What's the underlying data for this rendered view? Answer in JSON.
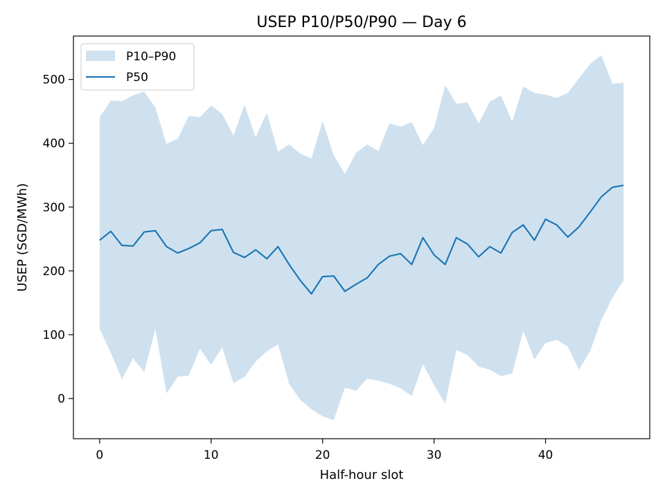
{
  "chart_data": {
    "type": "area",
    "title": "USEP P10/P50/P90 — Day 6",
    "xlabel": "Half-hour slot",
    "ylabel": "USEP (SGD/MWh)",
    "xlim": [
      -2.35,
      49.35
    ],
    "ylim": [
      -63,
      568
    ],
    "xticks": [
      0,
      10,
      20,
      30,
      40
    ],
    "yticks": [
      0,
      100,
      200,
      300,
      400,
      500
    ],
    "grid": false,
    "legend_position": "top-left",
    "x": [
      0,
      1,
      2,
      3,
      4,
      5,
      6,
      7,
      8,
      9,
      10,
      11,
      12,
      13,
      14,
      15,
      16,
      17,
      18,
      19,
      20,
      21,
      22,
      23,
      24,
      25,
      26,
      27,
      28,
      29,
      30,
      31,
      32,
      33,
      34,
      35,
      36,
      37,
      38,
      39,
      40,
      41,
      42,
      43,
      44,
      45,
      46,
      47
    ],
    "band": {
      "name": "P10–P90",
      "color": "#cfe1ef",
      "lower": [
        109,
        72,
        30,
        63,
        41,
        109,
        8,
        34,
        36,
        78,
        53,
        80,
        24,
        34,
        58,
        74,
        85,
        23,
        -2,
        -17,
        -28,
        -34,
        17,
        12,
        31,
        28,
        23,
        16,
        4,
        54,
        21,
        -8,
        76,
        68,
        50,
        45,
        35,
        39,
        106,
        61,
        87,
        92,
        81,
        45,
        74,
        123,
        158,
        185
      ],
      "upper": [
        441,
        467,
        466,
        475,
        481,
        456,
        399,
        407,
        443,
        441,
        459,
        446,
        412,
        460,
        409,
        448,
        387,
        398,
        384,
        376,
        435,
        381,
        352,
        385,
        398,
        388,
        431,
        426,
        433,
        397,
        424,
        491,
        462,
        464,
        431,
        465,
        475,
        434,
        489,
        479,
        476,
        471,
        479,
        502,
        524,
        538,
        493,
        495
      ]
    },
    "series": [
      {
        "name": "P50",
        "color": "#1f77b4",
        "values": [
          248,
          262,
          240,
          239,
          261,
          263,
          238,
          228,
          235,
          244,
          263,
          265,
          229,
          221,
          233,
          219,
          238,
          210,
          185,
          164,
          191,
          192,
          168,
          179,
          189,
          210,
          223,
          227,
          210,
          252,
          225,
          210,
          252,
          242,
          222,
          238,
          228,
          260,
          272,
          248,
          281,
          272,
          253,
          269,
          292,
          316,
          331,
          334
        ]
      }
    ]
  }
}
